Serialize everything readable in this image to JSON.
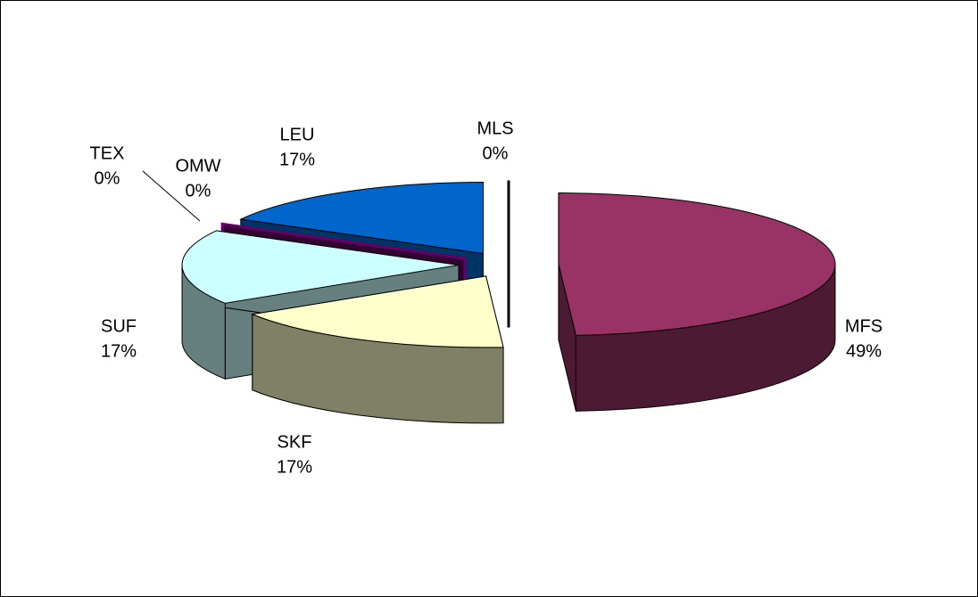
{
  "chart_data": {
    "type": "pie3d",
    "categories": [
      "MFS",
      "SKF",
      "SUF",
      "TEX",
      "OMW",
      "LEU",
      "MLS"
    ],
    "values": [
      49,
      17,
      17,
      0,
      0,
      17,
      0
    ],
    "value_labels": [
      "49%",
      "17%",
      "17%",
      "0%",
      "0%",
      "17%",
      "0%"
    ],
    "colors": [
      "#993366",
      "#ffffcc",
      "#ccffff",
      "#660066",
      "#660066",
      "#0066cc",
      "#000000"
    ]
  }
}
